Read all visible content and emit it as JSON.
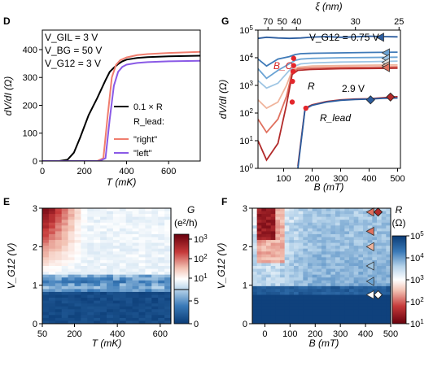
{
  "chart_data": [
    {
      "panel": "D",
      "type": "line",
      "xlabel": "T (mK)",
      "ylabel": "dV/dI (Ω)",
      "xlim": [
        0,
        750
      ],
      "ylim": [
        0,
        470
      ],
      "xticks": [
        0,
        200,
        400,
        600
      ],
      "yticks": [
        0,
        100,
        200,
        300,
        400
      ],
      "annotations": [
        "V_GIL = 3 V",
        "V_BG = 50 V",
        "V_G12 = 3 V"
      ],
      "legend": {
        "title": "R_lead:",
        "placement": "center-right",
        "entries": [
          "0.1 × R",
          "\"right\"",
          "\"left\""
        ]
      },
      "colors": {
        "0.1 × R": "#000000",
        "\"right\"": "#f07d6e",
        "\"left\"": "#8a5ae6"
      },
      "series": [
        {
          "name": "0.1 × R",
          "x": [
            0,
            80,
            120,
            150,
            180,
            220,
            260,
            300,
            320,
            340,
            360,
            380,
            400,
            450,
            500,
            600,
            750
          ],
          "y": [
            0,
            0,
            5,
            30,
            85,
            165,
            225,
            290,
            320,
            335,
            348,
            358,
            364,
            370,
            373,
            376,
            378
          ]
        },
        {
          "name": "\"right\"",
          "x": [
            0,
            260,
            290,
            310,
            330,
            350,
            370,
            400,
            450,
            500,
            600,
            750
          ],
          "y": [
            0,
            0,
            10,
            160,
            300,
            345,
            362,
            372,
            380,
            384,
            388,
            392
          ]
        },
        {
          "name": "\"left\"",
          "x": [
            0,
            270,
            300,
            320,
            340,
            360,
            380,
            400,
            450,
            500,
            600,
            750
          ],
          "y": [
            0,
            0,
            10,
            150,
            270,
            320,
            338,
            346,
            352,
            355,
            358,
            360
          ]
        }
      ]
    },
    {
      "panel": "G",
      "type": "line",
      "xlabel": "B (mT)",
      "ylabel": "dV/dI (Ω)",
      "top_xlabel": "ξ (nm)",
      "xlim": [
        10,
        510
      ],
      "ylim_log": [
        1,
        100000
      ],
      "yscale": "log",
      "xticks": [
        100,
        200,
        300,
        400,
        500
      ],
      "yticks": [
        "10^0",
        "10^1",
        "10^2",
        "10^3",
        "10^4",
        "10^5"
      ],
      "top_ticks": [
        "70",
        "50",
        "40",
        "30",
        "25"
      ],
      "top_tick_B": [
        45,
        95,
        145,
        352,
        505
      ],
      "annotations": [
        "V_G12 = 0.75 V",
        "B_C",
        "R",
        "2.9 V",
        "R_lead"
      ],
      "series": [
        {
          "name": "",
          "color": "#2b5c9e",
          "x": [
            10,
            40,
            80,
            120,
            160,
            200,
            250,
            300,
            350,
            400,
            450,
            500
          ],
          "y": [
            50000,
            55000,
            52000,
            50000,
            52000,
            56000,
            58000,
            55000,
            57000,
            60000,
            58000,
            57000
          ]
        },
        {
          "name": "",
          "color": "#3f7ab8",
          "x": [
            10,
            40,
            80,
            120,
            140,
            160,
            200,
            300,
            400,
            500
          ],
          "y": [
            9000,
            5000,
            9000,
            11000,
            13000,
            14000,
            14500,
            15000,
            15500,
            16000
          ]
        },
        {
          "name": "",
          "color": "#6aa3d4",
          "x": [
            10,
            40,
            80,
            120,
            140,
            160,
            200,
            300,
            400,
            500
          ],
          "y": [
            4000,
            1800,
            3500,
            6000,
            8000,
            9000,
            9500,
            10000,
            10200,
            10500
          ]
        },
        {
          "name": "",
          "color": "#9fc6e4",
          "x": [
            10,
            40,
            80,
            120,
            140,
            160,
            200,
            300,
            400,
            500
          ],
          "y": [
            1500,
            800,
            1200,
            3500,
            5000,
            6000,
            6500,
            7000,
            7200,
            7500
          ]
        },
        {
          "name": "",
          "color": "#f0b49c",
          "x": [
            10,
            40,
            80,
            110,
            130,
            150,
            200,
            300,
            400,
            500
          ],
          "y": [
            300,
            150,
            250,
            1000,
            3500,
            4500,
            5000,
            5200,
            5400,
            5500
          ]
        },
        {
          "name": "",
          "color": "#e0705e",
          "x": [
            10,
            40,
            80,
            110,
            130,
            150,
            200,
            300,
            400,
            500
          ],
          "y": [
            60,
            20,
            60,
            400,
            3000,
            4000,
            4300,
            4500,
            4600,
            4700
          ]
        },
        {
          "name": "",
          "color": "#b22a2a",
          "x": [
            10,
            40,
            80,
            110,
            130,
            150,
            200,
            300,
            400,
            500
          ],
          "y": [
            10,
            2,
            8,
            200,
            2500,
            3500,
            3800,
            4000,
            4100,
            4200
          ]
        },
        {
          "name": "R_lead",
          "color": "#b22a2a",
          "x": [
            150,
            175,
            200,
            250,
            300,
            350,
            400,
            450,
            480,
            500
          ],
          "y": [
            1.2,
            150,
            200,
            260,
            300,
            320,
            330,
            360,
            380,
            390
          ]
        },
        {
          "name": "R_lead",
          "color": "#2b5c9e",
          "x": [
            150,
            175,
            200,
            250,
            300,
            350,
            400,
            450,
            500
          ],
          "y": [
            1,
            140,
            190,
            250,
            290,
            310,
            320,
            340,
            350
          ]
        }
      ],
      "bc_points": [
        [
          135,
          9500
        ],
        [
          135,
          5200
        ],
        [
          133,
          3200
        ],
        [
          131,
          1400
        ],
        [
          130,
          250
        ],
        [
          178,
          150
        ]
      ],
      "triangle_markers": [
        {
          "B": 440,
          "value": 55000,
          "color": "#2b5c9e"
        },
        {
          "B": 460,
          "value": 15000,
          "color": "#6aa3d4"
        },
        {
          "B": 460,
          "value": 9500,
          "color": "#9fc6e4"
        },
        {
          "B": 460,
          "value": 6800,
          "color": "#dddddd"
        },
        {
          "B": 460,
          "value": 5200,
          "color": "#f0b49c"
        },
        {
          "B": 460,
          "value": 4400,
          "color": "#e0705e"
        }
      ],
      "diamond_markers": [
        {
          "B": 405,
          "value": 300,
          "color": "#2b5c9e"
        },
        {
          "B": 475,
          "value": 380,
          "color": "#b22a2a"
        }
      ]
    },
    {
      "panel": "E",
      "type": "heatmap",
      "xlabel": "T (mK)",
      "ylabel": "V_G12 (V)",
      "xlim": [
        50,
        650
      ],
      "ylim": [
        0,
        3
      ],
      "xticks": [
        50,
        200,
        400,
        600
      ],
      "yticks": [
        0,
        1,
        2,
        3
      ],
      "colorbar_label": "G (e²/h)",
      "colorbar_ticks": [
        "0",
        "5",
        "10^1",
        "10^2",
        "10^3"
      ]
    },
    {
      "panel": "F",
      "type": "heatmap",
      "xlabel": "B (mT)",
      "ylabel": "V_G12 (V)",
      "xlim": [
        -50,
        500
      ],
      "ylim": [
        0,
        3
      ],
      "xticks": [
        0,
        100,
        200,
        300,
        400,
        500
      ],
      "yticks": [
        0,
        1,
        2,
        3
      ],
      "colorbar_label": "R (Ω)",
      "colorbar_ticks": [
        "10^1",
        "10^2",
        "10^3",
        "10^4",
        "10^5"
      ],
      "triangle_markers": [
        {
          "V": 2.9,
          "color": "#e0705e"
        },
        {
          "V": 2.4,
          "color": "#e0705e"
        },
        {
          "V": 2.0,
          "color": "#f0b49c"
        },
        {
          "V": 1.5,
          "color": "#9fc6e4"
        },
        {
          "V": 1.1,
          "color": "#6aa3d4"
        },
        {
          "V": 0.75,
          "color": "#ffffff"
        }
      ],
      "diamond_markers": [
        {
          "B": 450,
          "V": 2.9,
          "color": "#b22a2a"
        },
        {
          "B": 450,
          "V": 0.75,
          "color": "#ffffff"
        }
      ]
    }
  ],
  "labels": {
    "panel_D": "D",
    "panel_G": "G",
    "panel_E": "E",
    "panel_F": "F",
    "D_xlabel": "T (mK)",
    "D_ylabel": "dV/dI (Ω)",
    "D_ann1": "V_GIL = 3 V",
    "D_ann2": "V_BG = 50 V",
    "D_ann3": "V_G12 = 3 V",
    "D_leg1": "0.1 × R",
    "D_legtitle": "R_lead:",
    "D_leg2": "\"right\"",
    "D_leg3": "\"left\"",
    "G_xlabel": "B (mT)",
    "G_ylabel": "dV/dI (Ω)",
    "G_toplabel": "ξ (nm)",
    "G_ann_v": "V_G12 = 0.75 V",
    "G_ann_bc": "B_C",
    "G_ann_r": "R",
    "G_ann_29": "2.9 V",
    "G_ann_rlead": "R_lead",
    "E_xlabel": "T (mK)",
    "E_ylabel": "V_G12 (V)",
    "E_cblabel1": "G",
    "E_cblabel2": "(e²/h)",
    "F_xlabel": "B (mT)",
    "F_ylabel": "V_G12 (V)",
    "F_cblabel1": "R",
    "F_cblabel2": "(Ω)"
  }
}
